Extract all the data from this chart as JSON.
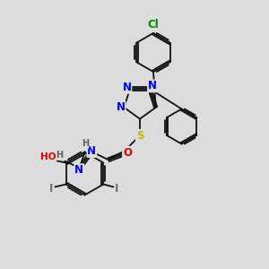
{
  "bg_color": "#dcdcdc",
  "atom_colors": {
    "N": "#0000ee",
    "O": "#dd0000",
    "S": "#bbbb00",
    "Cl": "#008800",
    "I": "#707070",
    "H": "#606060",
    "C": "#111111"
  },
  "bond_color": "#111111",
  "lw": 1.3,
  "fs": 8.5,
  "fs2": 7.0
}
